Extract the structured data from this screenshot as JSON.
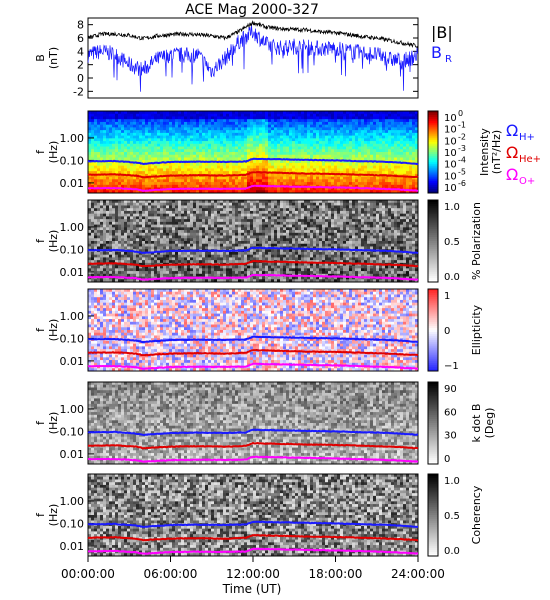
{
  "title": "ACE Mag 2000-327",
  "colors": {
    "black": "#000000",
    "blue": "#1a1aff",
    "red": "#e00000",
    "magenta": "#ff00ff"
  },
  "chart_data": [
    {
      "id": "field",
      "type": "line",
      "ylabel": [
        "B",
        "(nT)"
      ],
      "ylim": [
        -3,
        9
      ],
      "yticks": [
        "-2",
        "0",
        "2",
        "4",
        "6",
        "8"
      ],
      "yticks_values": [
        -2,
        0,
        2,
        4,
        6,
        8
      ],
      "legend": [
        "|B|",
        "B",
        "R"
      ],
      "x_hours": [
        0,
        1,
        2,
        3,
        4,
        5,
        6,
        7,
        8,
        9,
        10,
        11,
        12,
        13,
        14,
        15,
        16,
        17,
        18,
        19,
        20,
        21,
        22,
        23,
        24
      ],
      "series": [
        {
          "name": "|B|",
          "values": [
            6.0,
            6.6,
            6.6,
            6.4,
            5.9,
            6.3,
            6.5,
            6.6,
            6.5,
            6.3,
            6.0,
            7.0,
            8.3,
            7.6,
            7.4,
            7.3,
            7.2,
            6.9,
            6.8,
            6.5,
            6.2,
            6.0,
            5.6,
            5.2,
            4.8
          ]
        },
        {
          "name": "B_R",
          "values": [
            3.5,
            4.0,
            3.5,
            2.0,
            1.2,
            2.8,
            3.5,
            3.4,
            3.5,
            1.0,
            3.0,
            5.5,
            7.0,
            5.0,
            4.5,
            4.8,
            4.6,
            4.4,
            4.5,
            4.0,
            3.8,
            3.5,
            2.8,
            2.6,
            3.5
          ]
        }
      ]
    },
    {
      "id": "intensity",
      "type": "heatmap",
      "ylabel": [
        "f",
        "(Hz)"
      ],
      "yticks": [
        "1.00",
        "0.10",
        "0.01"
      ],
      "colorbar": {
        "title": "Intensity",
        "unit": "(nT²/Hz)",
        "ticks": [
          "10",
          "10",
          "10",
          "10",
          "10",
          "10",
          "10"
        ],
        "exponents": [
          "0",
          "-1",
          "-2",
          "-3",
          "-4",
          "-5",
          "-6"
        ]
      },
      "legend": [
        {
          "sym": "Ω",
          "sub": "H+"
        },
        {
          "sym": "Ω",
          "sub": "He+"
        },
        {
          "sym": "Ω",
          "sub": "O+"
        }
      ]
    },
    {
      "id": "polarization",
      "type": "heatmap",
      "ylabel": [
        "f",
        "(Hz)"
      ],
      "yticks": [
        "1.00",
        "0.10",
        "0.01"
      ],
      "colorbar": {
        "title": "% Polarization",
        "ticks": [
          "1.0",
          "0.5",
          "0.0"
        ]
      }
    },
    {
      "id": "ellipticity",
      "type": "heatmap",
      "ylabel": [
        "f",
        "(Hz)"
      ],
      "yticks": [
        "1.00",
        "0.10",
        "0.01"
      ],
      "colorbar": {
        "title": "Ellipticity",
        "ticks": [
          "1",
          "0",
          "−1"
        ]
      }
    },
    {
      "id": "kdotb",
      "type": "heatmap",
      "ylabel": [
        "f",
        "(Hz)"
      ],
      "yticks": [
        "1.00",
        "0.10",
        "0.01"
      ],
      "colorbar": {
        "title": "k dot B",
        "unit": "(Deg)",
        "ticks": [
          "90",
          "60",
          "30",
          "0"
        ]
      }
    },
    {
      "id": "coherency",
      "type": "heatmap",
      "ylabel": [
        "f",
        "(Hz)"
      ],
      "yticks": [
        "1.00",
        "0.10",
        "0.01"
      ],
      "colorbar": {
        "title": "Coherency",
        "ticks": [
          "1.0",
          "0.5",
          "0.0"
        ]
      }
    }
  ],
  "gyro_lines": {
    "x_hours": [
      0,
      2,
      3.5,
      4,
      6,
      8,
      10,
      11.5,
      12,
      14,
      16,
      18,
      20,
      22,
      24
    ],
    "H+": [
      0.092,
      0.094,
      0.08,
      0.07,
      0.085,
      0.088,
      0.086,
      0.09,
      0.118,
      0.112,
      0.106,
      0.1,
      0.092,
      0.085,
      0.07
    ],
    "He+": [
      0.023,
      0.024,
      0.021,
      0.018,
      0.021,
      0.022,
      0.021,
      0.023,
      0.03,
      0.028,
      0.026,
      0.025,
      0.023,
      0.021,
      0.018
    ],
    "O+": [
      0.0058,
      0.0059,
      0.0052,
      0.0045,
      0.0053,
      0.0055,
      0.0054,
      0.0056,
      0.0074,
      0.007,
      0.0066,
      0.0063,
      0.0058,
      0.0053,
      0.0045
    ]
  },
  "xaxis": {
    "label": "Time (UT)",
    "ticks": [
      "00:00:00",
      "06:00:00",
      "12:00:00",
      "18:00:00",
      "24:00:00"
    ],
    "tick_hours": [
      0,
      6,
      12,
      18,
      24
    ]
  }
}
